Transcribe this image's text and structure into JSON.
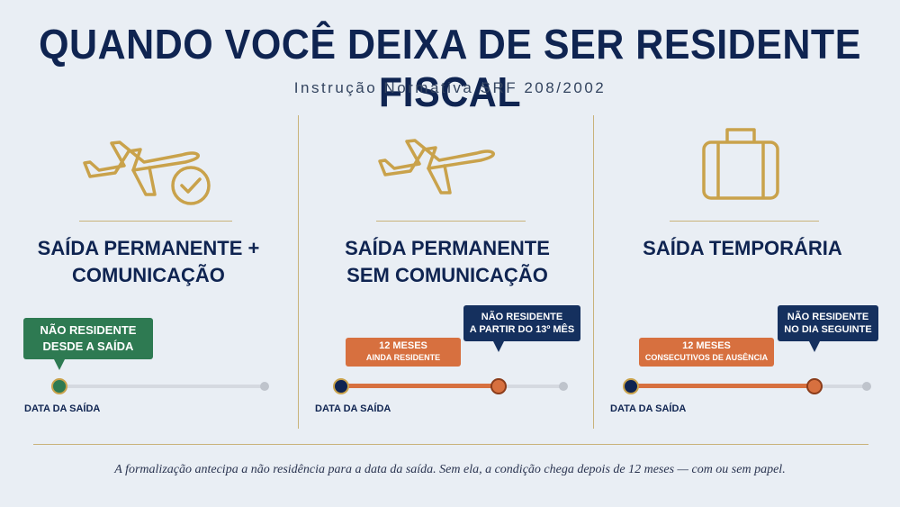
{
  "title": "QUANDO VOCÊ DEIXA DE SER RESIDENTE FISCAL",
  "subtitle": "Instrução Normativa SRF 208/2002",
  "colors": {
    "navy": "#0f2451",
    "gold": "#c9a24b",
    "orange": "#d7703f",
    "green": "#2e7a52",
    "background": "#e9eef4"
  },
  "panels": [
    {
      "icon": "airplane-check-icon",
      "heading": "SAÍDA PERMANENTE +\nCOMUNICAÇÃO",
      "callout_main": "NÃO RESIDENTE\nDESDE A SAÍDA",
      "axis_label": "DATA DA SAÍDA"
    },
    {
      "icon": "airplane-icon",
      "heading": "SAÍDA PERMANENTE\nSEM COMUNICAÇÃO",
      "callout_main": "NÃO RESIDENTE\nA PARTIR DO 13º MÊS",
      "period_title": "12 MESES",
      "period_sub": "AINDA RESIDENTE",
      "axis_label": "DATA DA SAÍDA"
    },
    {
      "icon": "suitcase-icon",
      "heading": "SAÍDA TEMPORÁRIA",
      "callout_main": "NÃO RESIDENTE\nNO DIA SEGUINTE",
      "period_title": "12 MESES",
      "period_sub": "CONSECUTIVOS DE AUSÊNCIA",
      "axis_label": "DATA DA SAÍDA"
    }
  ],
  "footnote": "A formalização antecipa a não residência para a data da saída. Sem ela, a condição chega depois de 12 meses — com ou sem papel."
}
